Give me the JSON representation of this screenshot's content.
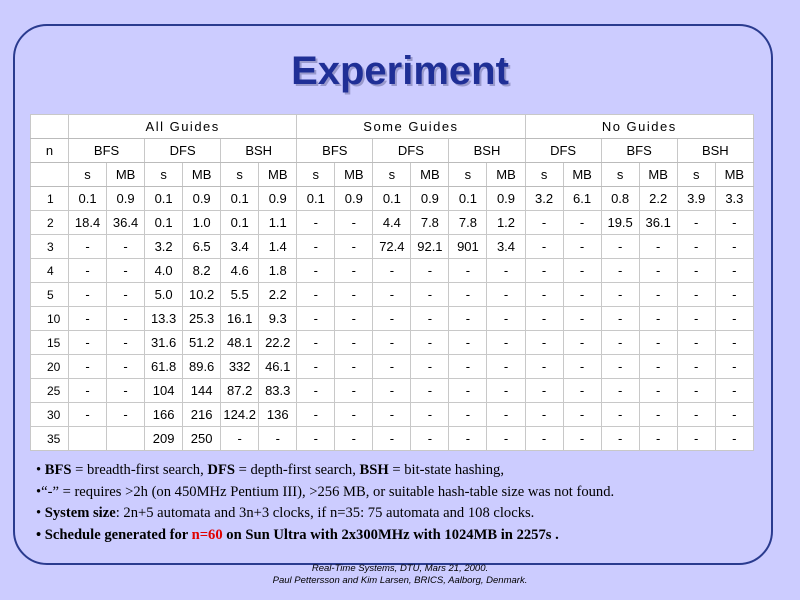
{
  "title": "Experiment",
  "table": {
    "n_header": "n",
    "groups": [
      "All Guides",
      "Some Guides",
      "No Guides"
    ],
    "algorithms": [
      [
        "BFS",
        "DFS",
        "BSH"
      ],
      [
        "BFS",
        "DFS",
        "BSH"
      ],
      [
        "DFS",
        "BFS",
        "BSH"
      ]
    ],
    "sub_s": "s",
    "sub_mb": "MB",
    "rows": [
      {
        "n": "1",
        "v": [
          "0.1",
          "0.9",
          "0.1",
          "0.9",
          "0.1",
          "0.9",
          "0.1",
          "0.9",
          "0.1",
          "0.9",
          "0.1",
          "0.9",
          "3.2",
          "6.1",
          "0.8",
          "2.2",
          "3.9",
          "3.3"
        ]
      },
      {
        "n": "2",
        "v": [
          "18.4",
          "36.4",
          "0.1",
          "1.0",
          "0.1",
          "1.1",
          "-",
          "-",
          "4.4",
          "7.8",
          "7.8",
          "1.2",
          "-",
          "-",
          "19.5",
          "36.1",
          "-",
          "-"
        ]
      },
      {
        "n": "3",
        "v": [
          "-",
          "-",
          "3.2",
          "6.5",
          "3.4",
          "1.4",
          "-",
          "-",
          "72.4",
          "92.1",
          "901",
          "3.4",
          "-",
          "-",
          "-",
          "-",
          "-",
          "-"
        ]
      },
      {
        "n": "4",
        "v": [
          "-",
          "-",
          "4.0",
          "8.2",
          "4.6",
          "1.8",
          "-",
          "-",
          "-",
          "-",
          "-",
          "-",
          "-",
          "-",
          "-",
          "-",
          "-",
          "-"
        ]
      },
      {
        "n": "5",
        "v": [
          "-",
          "-",
          "5.0",
          "10.2",
          "5.5",
          "2.2",
          "-",
          "-",
          "-",
          "-",
          "-",
          "-",
          "-",
          "-",
          "-",
          "-",
          "-",
          "-"
        ]
      },
      {
        "n": "10",
        "v": [
          "-",
          "-",
          "13.3",
          "25.3",
          "16.1",
          "9.3",
          "-",
          "-",
          "-",
          "-",
          "-",
          "-",
          "-",
          "-",
          "-",
          "-",
          "-",
          "-"
        ]
      },
      {
        "n": "15",
        "v": [
          "-",
          "-",
          "31.6",
          "51.2",
          "48.1",
          "22.2",
          "-",
          "-",
          "-",
          "-",
          "-",
          "-",
          "-",
          "-",
          "-",
          "-",
          "-",
          "-"
        ]
      },
      {
        "n": "20",
        "v": [
          "-",
          "-",
          "61.8",
          "89.6",
          "332",
          "46.1",
          "-",
          "-",
          "-",
          "-",
          "-",
          "-",
          "-",
          "-",
          "-",
          "-",
          "-",
          "-"
        ]
      },
      {
        "n": "25",
        "v": [
          "-",
          "-",
          "104",
          "144",
          "87.2",
          "83.3",
          "-",
          "-",
          "-",
          "-",
          "-",
          "-",
          "-",
          "-",
          "-",
          "-",
          "-",
          "-"
        ]
      },
      {
        "n": "30",
        "v": [
          "-",
          "-",
          "166",
          "216",
          "124.2",
          "136",
          "-",
          "-",
          "-",
          "-",
          "-",
          "-",
          "-",
          "-",
          "-",
          "-",
          "-",
          "-"
        ]
      },
      {
        "n": "35",
        "v": [
          "",
          "",
          "209",
          "250",
          "-",
          "-",
          "-",
          "-",
          "-",
          "-",
          "-",
          "-",
          "-",
          "-",
          "-",
          "-",
          "-",
          "-"
        ]
      }
    ]
  },
  "notes": {
    "line1": {
      "bullet": "• ",
      "bfs": "BFS",
      "bfs_def": " = breadth-first search, ",
      "dfs": "DFS",
      "dfs_def": " = depth-first search, ",
      "bsh": "BSH",
      "bsh_def": " = bit-state hashing,"
    },
    "line2": "•“-” = requires >2h (on 450MHz Pentium III), >256 MB, or suitable hash-table size was not found.",
    "line3": {
      "bullet": "• ",
      "label": "System size",
      "text": ": 2n+5 automata and 3n+3 clocks, if n=35: 75 automata and 108 clocks."
    },
    "line4": {
      "prefix": "• Schedule generated for ",
      "highlight": "n=60",
      "suffix": " on Sun Ultra with 2x300MHz with 1024MB in 2257s ."
    }
  },
  "footer": {
    "line1": "Real-Time Systems, DTU, Mars 21, 2000.",
    "line2": "Paul Pettersson and Kim Larsen, BRICS, Aalborg, Denmark."
  },
  "colors": {
    "background": "#ccccff",
    "title": "#1f2f96",
    "highlight": "#e00000"
  }
}
